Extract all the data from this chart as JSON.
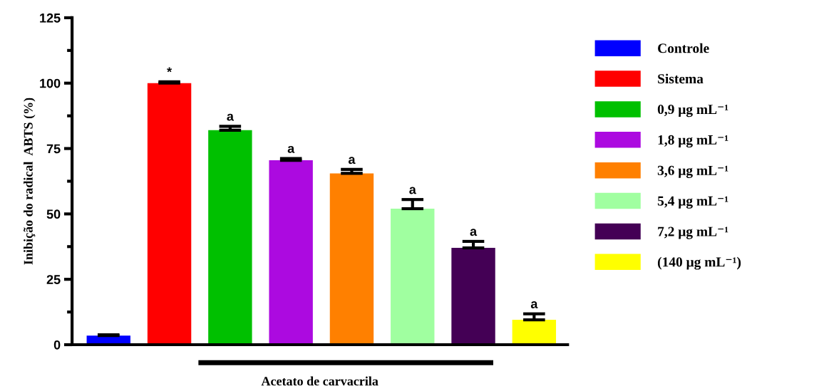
{
  "chart_data": {
    "type": "bar",
    "ylabel": "Inibição do radical  ABTS (%)",
    "categories": [
      null,
      null,
      null,
      null,
      null,
      null,
      null,
      null
    ],
    "series": [
      {
        "name": "Controle",
        "color": "#0000ff",
        "values": [
          3.5,
          null,
          null,
          null,
          null,
          null,
          null,
          null
        ],
        "errors": [
          [
            3.5,
            3.8
          ],
          null,
          null,
          null,
          null,
          null,
          null,
          null
        ]
      },
      {
        "name": "Sistema",
        "color": "#ff0000",
        "values": [
          null,
          100,
          null,
          null,
          null,
          null,
          null,
          null
        ],
        "errors": [
          null,
          [
            100,
            100.5
          ],
          null,
          null,
          null,
          null,
          null,
          null
        ]
      },
      {
        "name": "0,9 μg mL⁻¹",
        "color": "#00c000",
        "values": [
          null,
          null,
          82,
          null,
          null,
          null,
          null,
          null
        ],
        "errors": [
          null,
          null,
          [
            82,
            83.5
          ],
          null,
          null,
          null,
          null,
          null
        ]
      },
      {
        "name": "1,8 μg mL⁻¹",
        "color": "#ac0ae0",
        "values": [
          null,
          null,
          null,
          70.5,
          null,
          null,
          null,
          null
        ],
        "errors": [
          null,
          null,
          null,
          [
            70.5,
            71.2
          ],
          null,
          null,
          null,
          null
        ]
      },
      {
        "name": "3,6 μg mL⁻¹",
        "color": "#ff8000",
        "values": [
          null,
          null,
          null,
          null,
          65.5,
          null,
          null,
          null
        ],
        "errors": [
          null,
          null,
          null,
          null,
          [
            65.5,
            67
          ],
          null,
          null,
          null
        ]
      },
      {
        "name": "5,4 μg mL⁻¹",
        "color": "#a0ffa0",
        "values": [
          null,
          null,
          null,
          null,
          null,
          52,
          null,
          null
        ],
        "errors": [
          null,
          null,
          null,
          null,
          null,
          [
            52,
            55.5
          ],
          null,
          null
        ]
      },
      {
        "name": "7,2 μg mL⁻¹",
        "color": "#440055",
        "values": [
          null,
          null,
          null,
          null,
          null,
          null,
          37,
          null
        ],
        "errors": [
          null,
          null,
          null,
          null,
          null,
          null,
          [
            37,
            39.5
          ],
          null
        ]
      },
      {
        "name": "(140 μg mL⁻¹)",
        "color": "#ffff00",
        "values": [
          null,
          null,
          null,
          null,
          null,
          null,
          null,
          9.5
        ],
        "errors": [
          null,
          null,
          null,
          null,
          null,
          null,
          null,
          [
            9.5,
            11.8
          ]
        ]
      }
    ],
    "annotations": [
      {
        "text": "*",
        "y": 100.5
      },
      {
        "text": "a",
        "y": 83.5
      },
      {
        "text": "a",
        "y": 71.2
      },
      {
        "text": "a",
        "y": 67
      },
      {
        "text": "a",
        "y": 55.5
      },
      {
        "text": "a",
        "y": 39.5
      },
      {
        "text": "a",
        "y": 11.8
      },
      "Acetato de carvacrila"
    ],
    "ylim": [
      0,
      125
    ],
    "yticks": [
      0,
      25,
      50,
      75,
      100,
      125
    ],
    "tick_labels": "y",
    "legend": "right",
    "grid": false
  }
}
